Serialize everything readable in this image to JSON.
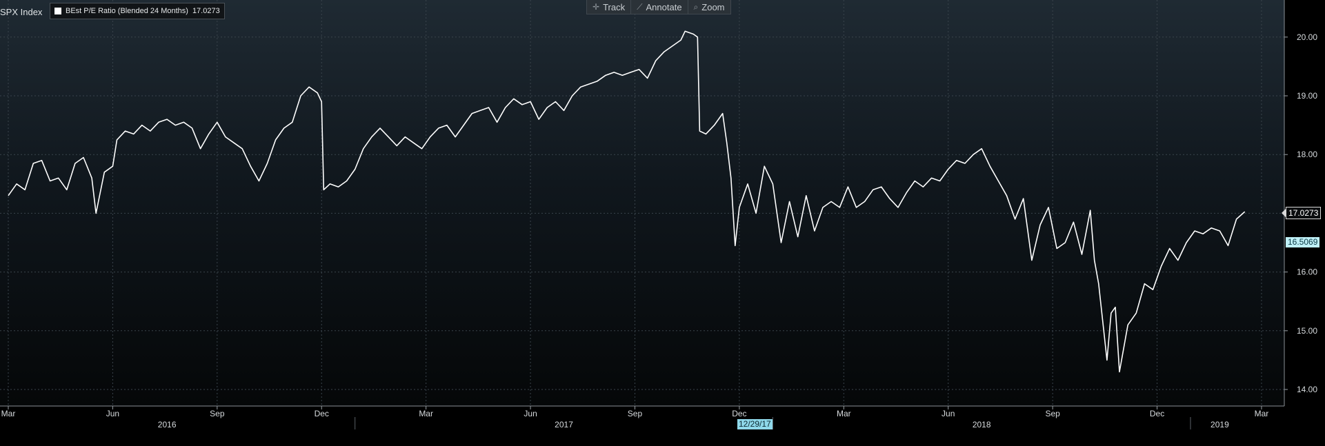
{
  "header": {
    "ticker": "SPX Index",
    "legend_label": "BEst P/E Ratio (Blended 24 Months)",
    "legend_value": "17.0273"
  },
  "toolbar": [
    {
      "label": "Track",
      "icon": "crosshair-icon",
      "glyph": "✛"
    },
    {
      "label": "Annotate",
      "icon": "pencil-icon",
      "glyph": "⟋"
    },
    {
      "label": "Zoom",
      "icon": "magnifier-icon",
      "glyph": "⌕"
    }
  ],
  "tags": {
    "last_value": "17.0273",
    "prev_value": "16.5069",
    "cursor_date": "12/29/17"
  },
  "colors": {
    "line": "#ffffff",
    "grid": "#3a444c",
    "background_top": "#1f2a33",
    "background_bottom": "#050708",
    "cursor_tag": "#8fd8ea",
    "prev_tag": "#bff0f7"
  },
  "chart_data": {
    "type": "line",
    "title": "",
    "ylim": [
      13.75,
      20.5
    ],
    "xlim": [
      2016.17,
      2019.2
    ],
    "y_ticks": [
      "20.00",
      "19.00",
      "18.00",
      "17.00",
      "16.00",
      "15.00",
      "14.00"
    ],
    "y_tick_values": [
      20,
      19,
      18,
      17,
      16,
      15,
      14
    ],
    "month_ticks": [
      {
        "label": "Mar",
        "x": 2016.17
      },
      {
        "label": "Jun",
        "x": 2016.42
      },
      {
        "label": "Sep",
        "x": 2016.67
      },
      {
        "label": "Dec",
        "x": 2016.92
      },
      {
        "label": "Mar",
        "x": 2017.17
      },
      {
        "label": "Jun",
        "x": 2017.42
      },
      {
        "label": "Sep",
        "x": 2017.67
      },
      {
        "label": "Dec",
        "x": 2017.92
      },
      {
        "label": "Mar",
        "x": 2018.17
      },
      {
        "label": "Jun",
        "x": 2018.42
      },
      {
        "label": "Sep",
        "x": 2018.67
      },
      {
        "label": "Dec",
        "x": 2018.92
      },
      {
        "label": "Mar",
        "x": 2019.17
      }
    ],
    "year_labels": [
      {
        "label": "2016",
        "x": 2016.55
      },
      {
        "label": "2017",
        "x": 2017.5
      },
      {
        "label": "2018",
        "x": 2018.5
      },
      {
        "label": "2019",
        "x": 2019.07
      }
    ],
    "year_dividers": [
      2017.0,
      2018.0,
      2019.0
    ],
    "grid": true,
    "legend_position": "top-left",
    "series": [
      {
        "name": "BEst P/E Ratio (Blended 24 Months)",
        "color": "#ffffff",
        "points": [
          [
            2016.17,
            17.3
          ],
          [
            2016.19,
            17.5
          ],
          [
            2016.21,
            17.4
          ],
          [
            2016.23,
            17.85
          ],
          [
            2016.25,
            17.9
          ],
          [
            2016.27,
            17.55
          ],
          [
            2016.29,
            17.6
          ],
          [
            2016.31,
            17.4
          ],
          [
            2016.33,
            17.85
          ],
          [
            2016.35,
            17.95
          ],
          [
            2016.37,
            17.6
          ],
          [
            2016.38,
            17.0
          ],
          [
            2016.4,
            17.7
          ],
          [
            2016.42,
            17.8
          ],
          [
            2016.43,
            18.25
          ],
          [
            2016.45,
            18.4
          ],
          [
            2016.47,
            18.35
          ],
          [
            2016.49,
            18.5
          ],
          [
            2016.51,
            18.4
          ],
          [
            2016.53,
            18.55
          ],
          [
            2016.55,
            18.6
          ],
          [
            2016.57,
            18.5
          ],
          [
            2016.59,
            18.55
          ],
          [
            2016.61,
            18.45
          ],
          [
            2016.63,
            18.1
          ],
          [
            2016.65,
            18.35
          ],
          [
            2016.67,
            18.55
          ],
          [
            2016.69,
            18.3
          ],
          [
            2016.71,
            18.2
          ],
          [
            2016.73,
            18.1
          ],
          [
            2016.75,
            17.8
          ],
          [
            2016.77,
            17.55
          ],
          [
            2016.79,
            17.85
          ],
          [
            2016.81,
            18.25
          ],
          [
            2016.83,
            18.45
          ],
          [
            2016.85,
            18.55
          ],
          [
            2016.87,
            19.0
          ],
          [
            2016.89,
            19.15
          ],
          [
            2016.91,
            19.05
          ],
          [
            2016.92,
            18.9
          ],
          [
            2016.925,
            17.4
          ],
          [
            2016.94,
            17.5
          ],
          [
            2016.96,
            17.45
          ],
          [
            2016.98,
            17.55
          ],
          [
            2017.0,
            17.75
          ],
          [
            2017.02,
            18.1
          ],
          [
            2017.04,
            18.3
          ],
          [
            2017.06,
            18.45
          ],
          [
            2017.08,
            18.3
          ],
          [
            2017.1,
            18.15
          ],
          [
            2017.12,
            18.3
          ],
          [
            2017.14,
            18.2
          ],
          [
            2017.16,
            18.1
          ],
          [
            2017.18,
            18.3
          ],
          [
            2017.2,
            18.45
          ],
          [
            2017.22,
            18.5
          ],
          [
            2017.24,
            18.3
          ],
          [
            2017.26,
            18.5
          ],
          [
            2017.28,
            18.7
          ],
          [
            2017.3,
            18.75
          ],
          [
            2017.32,
            18.8
          ],
          [
            2017.34,
            18.55
          ],
          [
            2017.36,
            18.8
          ],
          [
            2017.38,
            18.95
          ],
          [
            2017.4,
            18.85
          ],
          [
            2017.42,
            18.9
          ],
          [
            2017.44,
            18.6
          ],
          [
            2017.46,
            18.8
          ],
          [
            2017.48,
            18.9
          ],
          [
            2017.5,
            18.75
          ],
          [
            2017.52,
            19.0
          ],
          [
            2017.54,
            19.15
          ],
          [
            2017.56,
            19.2
          ],
          [
            2017.58,
            19.25
          ],
          [
            2017.6,
            19.35
          ],
          [
            2017.62,
            19.4
          ],
          [
            2017.64,
            19.35
          ],
          [
            2017.66,
            19.4
          ],
          [
            2017.68,
            19.45
          ],
          [
            2017.7,
            19.3
          ],
          [
            2017.72,
            19.6
          ],
          [
            2017.74,
            19.75
          ],
          [
            2017.76,
            19.85
          ],
          [
            2017.78,
            19.95
          ],
          [
            2017.79,
            20.1
          ],
          [
            2017.81,
            20.05
          ],
          [
            2017.82,
            20.0
          ],
          [
            2017.825,
            18.4
          ],
          [
            2017.84,
            18.35
          ],
          [
            2017.86,
            18.5
          ],
          [
            2017.88,
            18.7
          ],
          [
            2017.89,
            18.2
          ],
          [
            2017.9,
            17.6
          ],
          [
            2017.91,
            16.45
          ],
          [
            2017.92,
            17.1
          ],
          [
            2017.94,
            17.5
          ],
          [
            2017.96,
            17.0
          ],
          [
            2017.98,
            17.8
          ],
          [
            2018.0,
            17.5
          ],
          [
            2018.02,
            16.5
          ],
          [
            2018.04,
            17.2
          ],
          [
            2018.06,
            16.6
          ],
          [
            2018.08,
            17.3
          ],
          [
            2018.1,
            16.7
          ],
          [
            2018.12,
            17.1
          ],
          [
            2018.14,
            17.2
          ],
          [
            2018.16,
            17.1
          ],
          [
            2018.18,
            17.45
          ],
          [
            2018.2,
            17.1
          ],
          [
            2018.22,
            17.2
          ],
          [
            2018.24,
            17.4
          ],
          [
            2018.26,
            17.45
          ],
          [
            2018.28,
            17.25
          ],
          [
            2018.3,
            17.1
          ],
          [
            2018.32,
            17.35
          ],
          [
            2018.34,
            17.55
          ],
          [
            2018.36,
            17.45
          ],
          [
            2018.38,
            17.6
          ],
          [
            2018.4,
            17.55
          ],
          [
            2018.42,
            17.75
          ],
          [
            2018.44,
            17.9
          ],
          [
            2018.46,
            17.85
          ],
          [
            2018.48,
            18.0
          ],
          [
            2018.5,
            18.1
          ],
          [
            2018.52,
            17.8
          ],
          [
            2018.54,
            17.55
          ],
          [
            2018.56,
            17.3
          ],
          [
            2018.58,
            16.9
          ],
          [
            2018.6,
            17.25
          ],
          [
            2018.62,
            16.2
          ],
          [
            2018.64,
            16.8
          ],
          [
            2018.66,
            17.1
          ],
          [
            2018.68,
            16.4
          ],
          [
            2018.7,
            16.5
          ],
          [
            2018.72,
            16.85
          ],
          [
            2018.74,
            16.3
          ],
          [
            2018.76,
            17.05
          ],
          [
            2018.77,
            16.2
          ],
          [
            2018.78,
            15.8
          ],
          [
            2018.8,
            14.5
          ],
          [
            2018.81,
            15.3
          ],
          [
            2018.82,
            15.4
          ],
          [
            2018.83,
            14.3
          ],
          [
            2018.85,
            15.1
          ],
          [
            2018.87,
            15.3
          ],
          [
            2018.89,
            15.8
          ],
          [
            2018.91,
            15.7
          ],
          [
            2018.93,
            16.1
          ],
          [
            2018.95,
            16.4
          ],
          [
            2018.97,
            16.2
          ],
          [
            2018.99,
            16.5
          ],
          [
            2019.01,
            16.7
          ],
          [
            2019.03,
            16.65
          ],
          [
            2019.05,
            16.75
          ],
          [
            2019.07,
            16.7
          ],
          [
            2019.09,
            16.45
          ],
          [
            2019.11,
            16.9
          ],
          [
            2019.13,
            17.0273
          ]
        ]
      }
    ]
  }
}
